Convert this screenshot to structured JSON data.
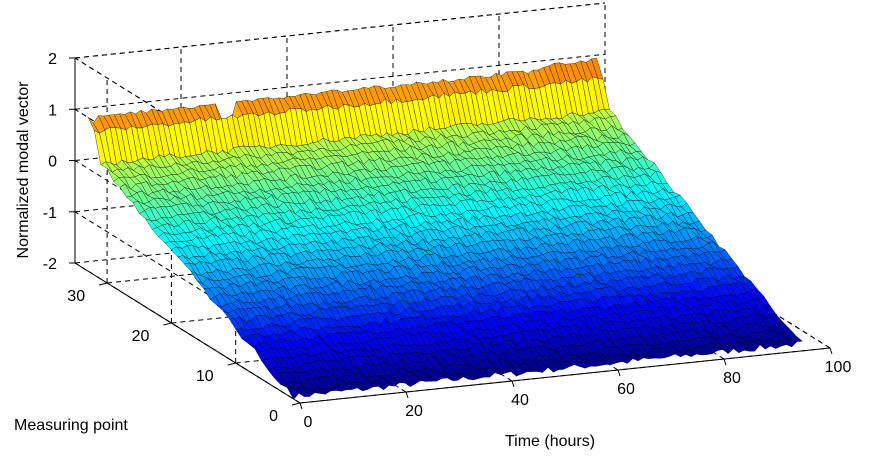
{
  "chart_data": {
    "type": "surface",
    "title": "",
    "xlabel": "Time (hours)",
    "ylabel": "Measuring point",
    "zlabel": "Normalized modal vector",
    "xlim": [
      0,
      100
    ],
    "ylim": [
      0,
      35
    ],
    "zlim": [
      -2,
      2
    ],
    "x_ticks": [
      "0",
      "20",
      "40",
      "60",
      "80",
      "100"
    ],
    "y_ticks": [
      "0",
      "10",
      "20",
      "30"
    ],
    "z_ticks": [
      "-2",
      "-1",
      "0",
      "1",
      "2"
    ],
    "x_tick_values": [
      0,
      20,
      40,
      60,
      80,
      100
    ],
    "y_tick_values": [
      0,
      10,
      20,
      30
    ],
    "z_tick_values": [
      -2,
      -1,
      0,
      1,
      2
    ],
    "colormap": "jet",
    "x_range_data": [
      0,
      96
    ],
    "y_range_data": [
      1,
      33
    ],
    "grid": true,
    "surface_profile": {
      "description_source": "visual estimate",
      "measuring_point": [
        1,
        3,
        5,
        7,
        9,
        11,
        13,
        15,
        17,
        19,
        21,
        23,
        25,
        27,
        29,
        31,
        32,
        33
      ],
      "mean_value": [
        -1.95,
        -1.85,
        -1.7,
        -1.55,
        -1.4,
        -1.25,
        -1.1,
        -0.95,
        -0.8,
        -0.65,
        -0.5,
        -0.35,
        -0.2,
        -0.05,
        0.1,
        0.25,
        0.8,
        1.0
      ]
    }
  }
}
